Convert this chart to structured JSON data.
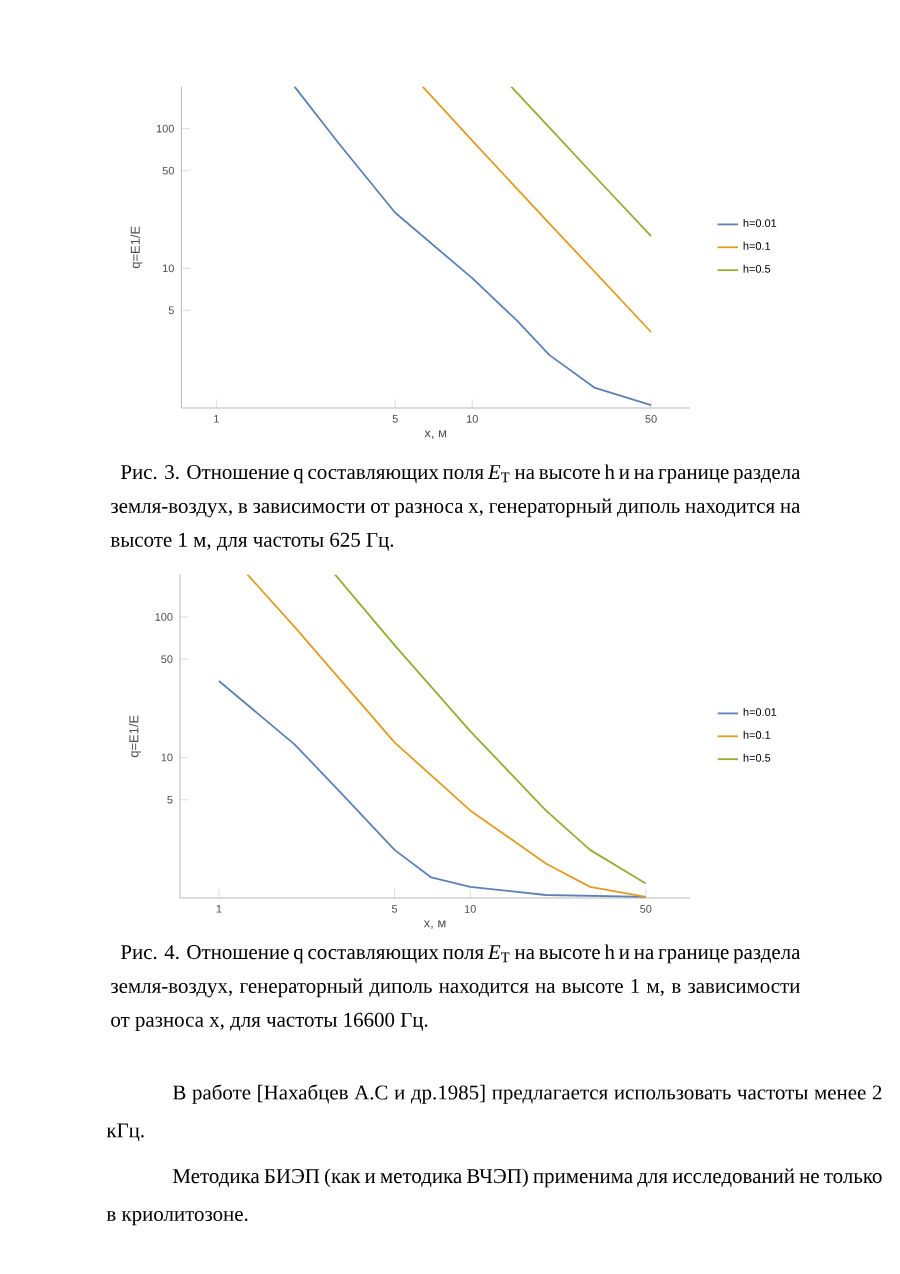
{
  "chart_data": [
    {
      "type": "line",
      "log": "xy",
      "xlabel": "x, м",
      "ylabel": "q=E1/E",
      "xlim": [
        0.73,
        71
      ],
      "ylim": [
        1,
        200
      ],
      "xticks": [
        1,
        5,
        10,
        50
      ],
      "yticks": [
        5,
        10,
        50,
        100
      ],
      "legend": "right",
      "marker": "none",
      "series": [
        {
          "name": "h=0.01",
          "color": "#5e81b5",
          "x": [
            2.02,
            3,
            5,
            10,
            15,
            20,
            30,
            50
          ],
          "values": [
            200,
            79,
            25,
            8.5,
            4.2,
            2.4,
            1.4,
            1.05
          ]
        },
        {
          "name": "h=0.1",
          "color": "#e19c24",
          "x": [
            6.4,
            10,
            20,
            50
          ],
          "values": [
            200,
            82,
            21,
            3.5
          ]
        },
        {
          "name": "h=0.5",
          "color": "#8fb032",
          "x": [
            14.2,
            20,
            30,
            50
          ],
          "values": [
            200,
            102,
            46,
            17
          ]
        }
      ],
      "annotations": [
        "Рис. 3. Отношение q составляющих поля *E*$_{T}$ на высоте h и на границе раздела земля-воздух, в зависимости от разноса x, генераторный диполь находится на высоте 1 м, для частоты 625 Гц."
      ]
    },
    {
      "type": "line",
      "log": "xy",
      "xlabel": "x, м",
      "ylabel": "q=E1/E",
      "xlim": [
        0.7,
        75
      ],
      "ylim": [
        1,
        200
      ],
      "xticks": [
        1,
        5,
        10,
        50
      ],
      "yticks": [
        5,
        10,
        50,
        100
      ],
      "legend": "right",
      "marker": "none",
      "series": [
        {
          "name": "h=0.01",
          "color": "#5e81b5",
          "x": [
            1,
            2,
            3,
            5,
            7,
            10,
            20,
            50
          ],
          "values": [
            35,
            12.4,
            5.8,
            2.2,
            1.4,
            1.2,
            1.05,
            1.02
          ]
        },
        {
          "name": "h=0.1",
          "color": "#e19c24",
          "x": [
            1.3,
            2,
            5,
            10,
            20,
            30,
            50
          ],
          "values": [
            200,
            85,
            12.8,
            4.2,
            1.76,
            1.2,
            1.02
          ]
        },
        {
          "name": "h=0.5",
          "color": "#8fb032",
          "x": [
            2.9,
            5,
            10,
            20,
            30,
            50
          ],
          "values": [
            200,
            63,
            15.4,
            4.2,
            2.2,
            1.27
          ]
        }
      ],
      "annotations": [
        "Рис. 4. Отношение q составляющих поля *E*$_{T}$ на высоте h и на границе раздела земля-воздух, генераторный диполь находится на высоте 1 м, в зависимости от разноса x, для частоты 16600 Гц.",
        "В работе [Нахабцев А.С и др.1985] предлагается использовать частоты менее 2 кГц.",
        "Методика БИЭП (как и методика ВЧЭП) применима для исследований не только в криолитозоне."
      ]
    }
  ]
}
